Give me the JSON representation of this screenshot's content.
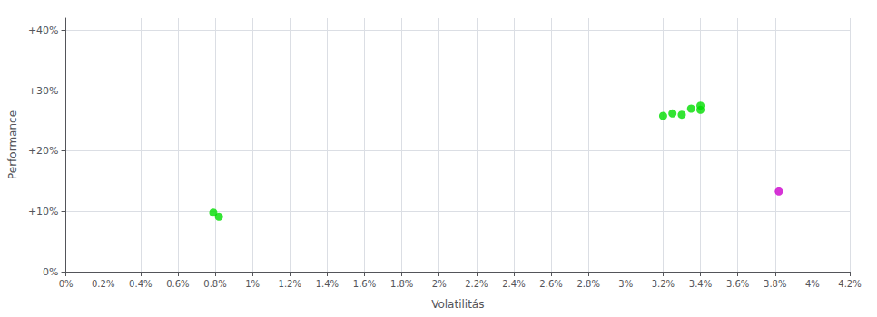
{
  "chart_data": {
    "type": "scatter",
    "xlabel": "Volatilitás",
    "ylabel": "Performance",
    "xlim": [
      0.0,
      0.042
    ],
    "ylim": [
      0.0,
      0.42
    ],
    "xticks": [
      {
        "value": 0,
        "label": "0%"
      },
      {
        "value": 0.002,
        "label": "0.2%"
      },
      {
        "value": 0.004,
        "label": "0.4%"
      },
      {
        "value": 0.006,
        "label": "0.6%"
      },
      {
        "value": 0.008,
        "label": "0.8%"
      },
      {
        "value": 0.01,
        "label": "1%"
      },
      {
        "value": 0.012,
        "label": "1.2%"
      },
      {
        "value": 0.014,
        "label": "1.4%"
      },
      {
        "value": 0.016,
        "label": "1.6%"
      },
      {
        "value": 0.018,
        "label": "1.8%"
      },
      {
        "value": 0.02,
        "label": "2%"
      },
      {
        "value": 0.022,
        "label": "2.2%"
      },
      {
        "value": 0.024,
        "label": "2.4%"
      },
      {
        "value": 0.026,
        "label": "2.6%"
      },
      {
        "value": 0.028,
        "label": "2.8%"
      },
      {
        "value": 0.03,
        "label": "3%"
      },
      {
        "value": 0.032,
        "label": "3.2%"
      },
      {
        "value": 0.034,
        "label": "3.4%"
      },
      {
        "value": 0.036,
        "label": "3.6%"
      },
      {
        "value": 0.038,
        "label": "3.8%"
      },
      {
        "value": 0.04,
        "label": "4%"
      },
      {
        "value": 0.042,
        "label": "4.2%"
      }
    ],
    "yticks": [
      {
        "value": 0,
        "label": "0%"
      },
      {
        "value": 0.1,
        "label": "+10%"
      },
      {
        "value": 0.2,
        "label": "+20%"
      },
      {
        "value": 0.3,
        "label": "+30%"
      },
      {
        "value": 0.4,
        "label": "+40%"
      }
    ],
    "grid": true,
    "series": [
      {
        "color": "#00dd00",
        "x": [
          0.0079,
          0.0082,
          0.032,
          0.0325,
          0.033,
          0.0335,
          0.034,
          0.034
        ],
        "values": [
          0.098,
          0.091,
          0.258,
          0.262,
          0.26,
          0.27,
          0.268,
          0.275
        ]
      },
      {
        "color": "#cc00cc",
        "x": [
          0.0382
        ],
        "values": [
          0.133
        ]
      }
    ]
  }
}
